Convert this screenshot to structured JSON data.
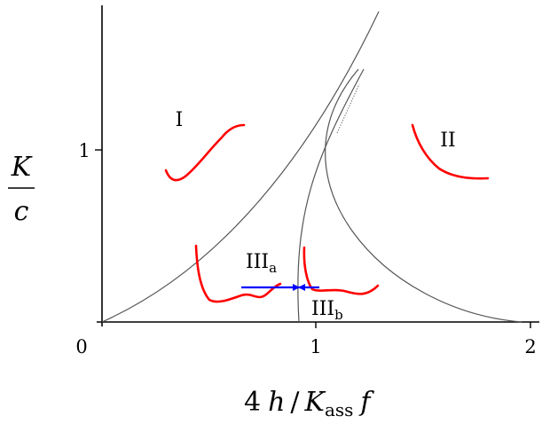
{
  "axes": {
    "x_ticks": [
      {
        "value": 0,
        "label": "0"
      },
      {
        "value": 1,
        "label": "1"
      },
      {
        "value": 2,
        "label": "2"
      }
    ],
    "y_ticks": [
      {
        "value": 1,
        "label": "1"
      }
    ],
    "x_label": {
      "coef": "4",
      "h": "h",
      "slash": "/",
      "K": "K",
      "sub": "ass",
      "f": "f"
    },
    "y_label": {
      "numerator": "K",
      "denominator": "c"
    },
    "xlim": [
      0,
      2.05
    ],
    "ylim": [
      0,
      1.8
    ]
  },
  "regions": {
    "I": "I",
    "II": "II",
    "IIIa_main": "III",
    "IIIa_sub": "a",
    "IIIb_main": "III",
    "IIIb_sub": "b"
  },
  "colors": {
    "axis": "#000000",
    "boundary": "#555555",
    "sketch": "#ff0000",
    "arrow": "#0000ff"
  }
}
